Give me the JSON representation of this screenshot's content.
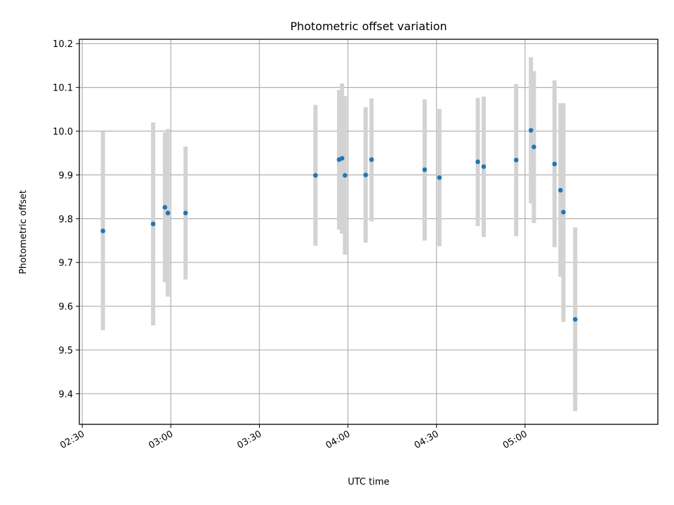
{
  "chart_data": {
    "type": "scatter",
    "title": "Photometric offset variation",
    "xlabel": "UTC time",
    "ylabel": "Photometric offset",
    "x_axis_type": "time",
    "xlim": [
      "02:29",
      "05:45"
    ],
    "ylim": [
      9.33,
      10.21
    ],
    "x_ticks": [
      "02:30",
      "03:00",
      "03:30",
      "04:00",
      "04:30",
      "05:00"
    ],
    "y_ticks": [
      9.4,
      9.5,
      9.6,
      9.7,
      9.8,
      9.9,
      10.0,
      10.1,
      10.2
    ],
    "y_tick_labels": [
      "9.4",
      "9.5",
      "9.6",
      "9.7",
      "9.8",
      "9.9",
      "10.0",
      "10.1",
      "10.2"
    ],
    "grid": true,
    "colors": {
      "point": "#1f77b4",
      "error_bar": "#d3d3d3",
      "grid": "#b0b0b0"
    },
    "series": [
      {
        "points": [
          {
            "x": "02:37",
            "y": 9.772,
            "y_low": 9.545,
            "y_high": 9.999
          },
          {
            "x": "02:54",
            "y": 9.788,
            "y_low": 9.556,
            "y_high": 10.02
          },
          {
            "x": "02:58",
            "y": 9.826,
            "y_low": 9.655,
            "y_high": 9.997
          },
          {
            "x": "02:59",
            "y": 9.813,
            "y_low": 9.622,
            "y_high": 10.005
          },
          {
            "x": "03:05",
            "y": 9.813,
            "y_low": 9.661,
            "y_high": 9.965
          },
          {
            "x": "03:49",
            "y": 9.899,
            "y_low": 9.738,
            "y_high": 10.06
          },
          {
            "x": "03:57",
            "y": 9.935,
            "y_low": 9.775,
            "y_high": 10.094
          },
          {
            "x": "03:58",
            "y": 9.938,
            "y_low": 9.766,
            "y_high": 10.109
          },
          {
            "x": "03:59",
            "y": 9.899,
            "y_low": 9.718,
            "y_high": 10.08
          },
          {
            "x": "04:06",
            "y": 9.9,
            "y_low": 9.745,
            "y_high": 10.055
          },
          {
            "x": "04:08",
            "y": 9.935,
            "y_low": 9.794,
            "y_high": 10.075
          },
          {
            "x": "04:26",
            "y": 9.912,
            "y_low": 9.75,
            "y_high": 10.073
          },
          {
            "x": "04:31",
            "y": 9.894,
            "y_low": 9.737,
            "y_high": 10.051
          },
          {
            "x": "04:44",
            "y": 9.93,
            "y_low": 9.783,
            "y_high": 10.076
          },
          {
            "x": "04:46",
            "y": 9.919,
            "y_low": 9.758,
            "y_high": 10.079
          },
          {
            "x": "04:57",
            "y": 9.934,
            "y_low": 9.76,
            "y_high": 10.108
          },
          {
            "x": "05:02",
            "y": 10.002,
            "y_low": 9.835,
            "y_high": 10.169
          },
          {
            "x": "05:03",
            "y": 9.964,
            "y_low": 9.79,
            "y_high": 10.137
          },
          {
            "x": "05:10",
            "y": 9.925,
            "y_low": 9.735,
            "y_high": 10.116
          },
          {
            "x": "05:12",
            "y": 9.865,
            "y_low": 9.667,
            "y_high": 10.064
          },
          {
            "x": "05:13",
            "y": 9.815,
            "y_low": 9.564,
            "y_high": 10.064
          },
          {
            "x": "05:17",
            "y": 9.57,
            "y_low": 9.36,
            "y_high": 9.78
          }
        ]
      }
    ]
  }
}
